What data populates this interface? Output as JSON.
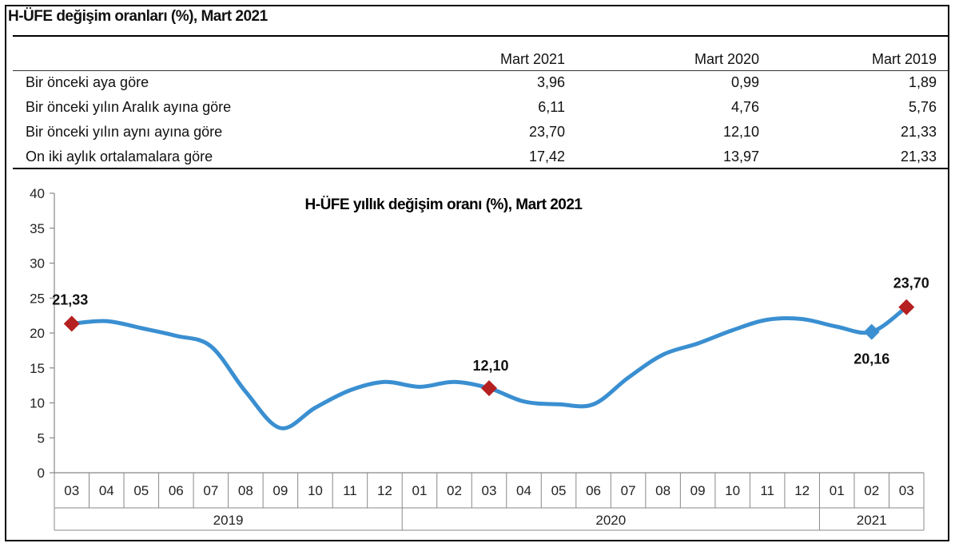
{
  "table": {
    "title": "H-ÜFE değişim oranları (%), Mart 2021",
    "columns": [
      "Mart 2021",
      "Mart 2020",
      "Mart 2019"
    ],
    "rows": [
      {
        "label": "Bir önceki aya göre",
        "values": [
          "3,96",
          "0,99",
          "1,89"
        ]
      },
      {
        "label": "Bir önceki yılın Aralık ayına göre",
        "values": [
          "6,11",
          "4,76",
          "5,76"
        ]
      },
      {
        "label": "Bir önceki yılın aynı ayına göre",
        "values": [
          "23,70",
          "12,10",
          "21,33"
        ]
      },
      {
        "label": "On iki aylık ortalamalara göre",
        "values": [
          "17,42",
          "13,97",
          "21,33"
        ]
      }
    ]
  },
  "chart_data": {
    "type": "line",
    "title": "H-ÜFE yıllık değişim oranı (%), Mart 2021",
    "xlabel": "",
    "ylabel": "",
    "ylim": [
      0,
      40
    ],
    "y_ticks": [
      "0",
      "5",
      "10",
      "15",
      "20",
      "25",
      "30",
      "35",
      "40"
    ],
    "categories": [
      "03",
      "04",
      "05",
      "06",
      "07",
      "08",
      "09",
      "10",
      "11",
      "12",
      "01",
      "02",
      "03",
      "04",
      "05",
      "06",
      "07",
      "08",
      "09",
      "10",
      "11",
      "12",
      "01",
      "02",
      "03"
    ],
    "year_groups": [
      {
        "label": "2019",
        "count": 10
      },
      {
        "label": "2020",
        "count": 12
      },
      {
        "label": "2021",
        "count": 3
      }
    ],
    "series": [
      {
        "values": [
          21.33,
          21.7,
          20.7,
          19.6,
          18.1,
          11.6,
          6.4,
          9.3,
          11.8,
          13.0,
          12.3,
          13.0,
          12.1,
          10.2,
          9.8,
          9.8,
          13.6,
          16.9,
          18.5,
          20.4,
          21.9,
          22.0,
          20.9,
          20.16,
          23.7
        ]
      }
    ],
    "line_color": "#3a8fd1",
    "marker_color": "#b52020",
    "highlights": [
      {
        "index": 0,
        "label": "21,33",
        "marker": "diamond-red"
      },
      {
        "index": 12,
        "label": "12,10",
        "marker": "diamond-red"
      },
      {
        "index": 23,
        "label": "20,16",
        "marker": "diamond-blue"
      },
      {
        "index": 24,
        "label": "23,70",
        "marker": "diamond-red"
      }
    ],
    "grid": false,
    "legend": "none"
  }
}
